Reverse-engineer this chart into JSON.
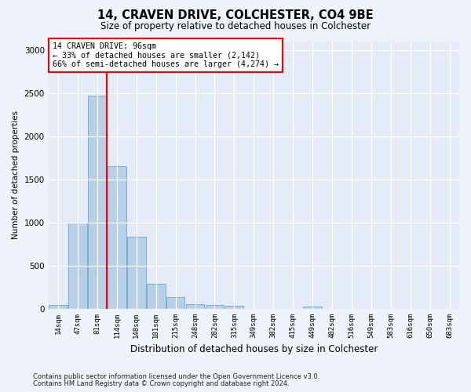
{
  "title": "14, CRAVEN DRIVE, COLCHESTER, CO4 9BE",
  "subtitle": "Size of property relative to detached houses in Colchester",
  "xlabel": "Distribution of detached houses by size in Colchester",
  "ylabel": "Number of detached properties",
  "bar_color": "#b8cfe8",
  "bar_edge_color": "#7aadd4",
  "vline_color": "red",
  "vline_x_index": 2,
  "annotation_title": "14 CRAVEN DRIVE: 96sqm",
  "annotation_line1": "← 33% of detached houses are smaller (2,142)",
  "annotation_line2": "66% of semi-detached houses are larger (4,274) →",
  "categories": [
    "14sqm",
    "47sqm",
    "81sqm",
    "114sqm",
    "148sqm",
    "181sqm",
    "215sqm",
    "248sqm",
    "282sqm",
    "315sqm",
    "349sqm",
    "382sqm",
    "415sqm",
    "449sqm",
    "482sqm",
    "516sqm",
    "549sqm",
    "583sqm",
    "616sqm",
    "650sqm",
    "683sqm"
  ],
  "values": [
    50,
    1000,
    2470,
    1650,
    840,
    290,
    140,
    55,
    50,
    40,
    0,
    0,
    0,
    25,
    0,
    0,
    0,
    0,
    0,
    0,
    0
  ],
  "ylim": [
    0,
    3100
  ],
  "yticks": [
    0,
    500,
    1000,
    1500,
    2000,
    2500,
    3000
  ],
  "footer1": "Contains HM Land Registry data © Crown copyright and database right 2024.",
  "footer2": "Contains public sector information licensed under the Open Government Licence v3.0.",
  "bg_color": "#eef2fb",
  "plot_bg_color": "#e4eaf6"
}
